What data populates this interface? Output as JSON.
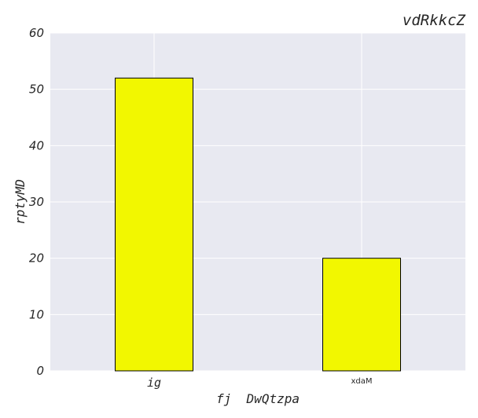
{
  "chart_data": {
    "type": "bar",
    "title": "vdRkkcZ",
    "xlabel": "fj  DwQtzpa",
    "ylabel": "rptyMD",
    "categories": [
      "ig",
      "xdaM"
    ],
    "values": [
      52,
      20
    ],
    "ylim": [
      0,
      60
    ],
    "yticks": [
      "0",
      "10",
      "20",
      "30",
      "40",
      "50",
      "60"
    ],
    "grid": true,
    "legend": "none"
  },
  "colors": {
    "bar_fill": "#f2f700",
    "bar_edge": "#000000",
    "plot_background": "#e8e9f1",
    "grid": "#ffffff"
  }
}
